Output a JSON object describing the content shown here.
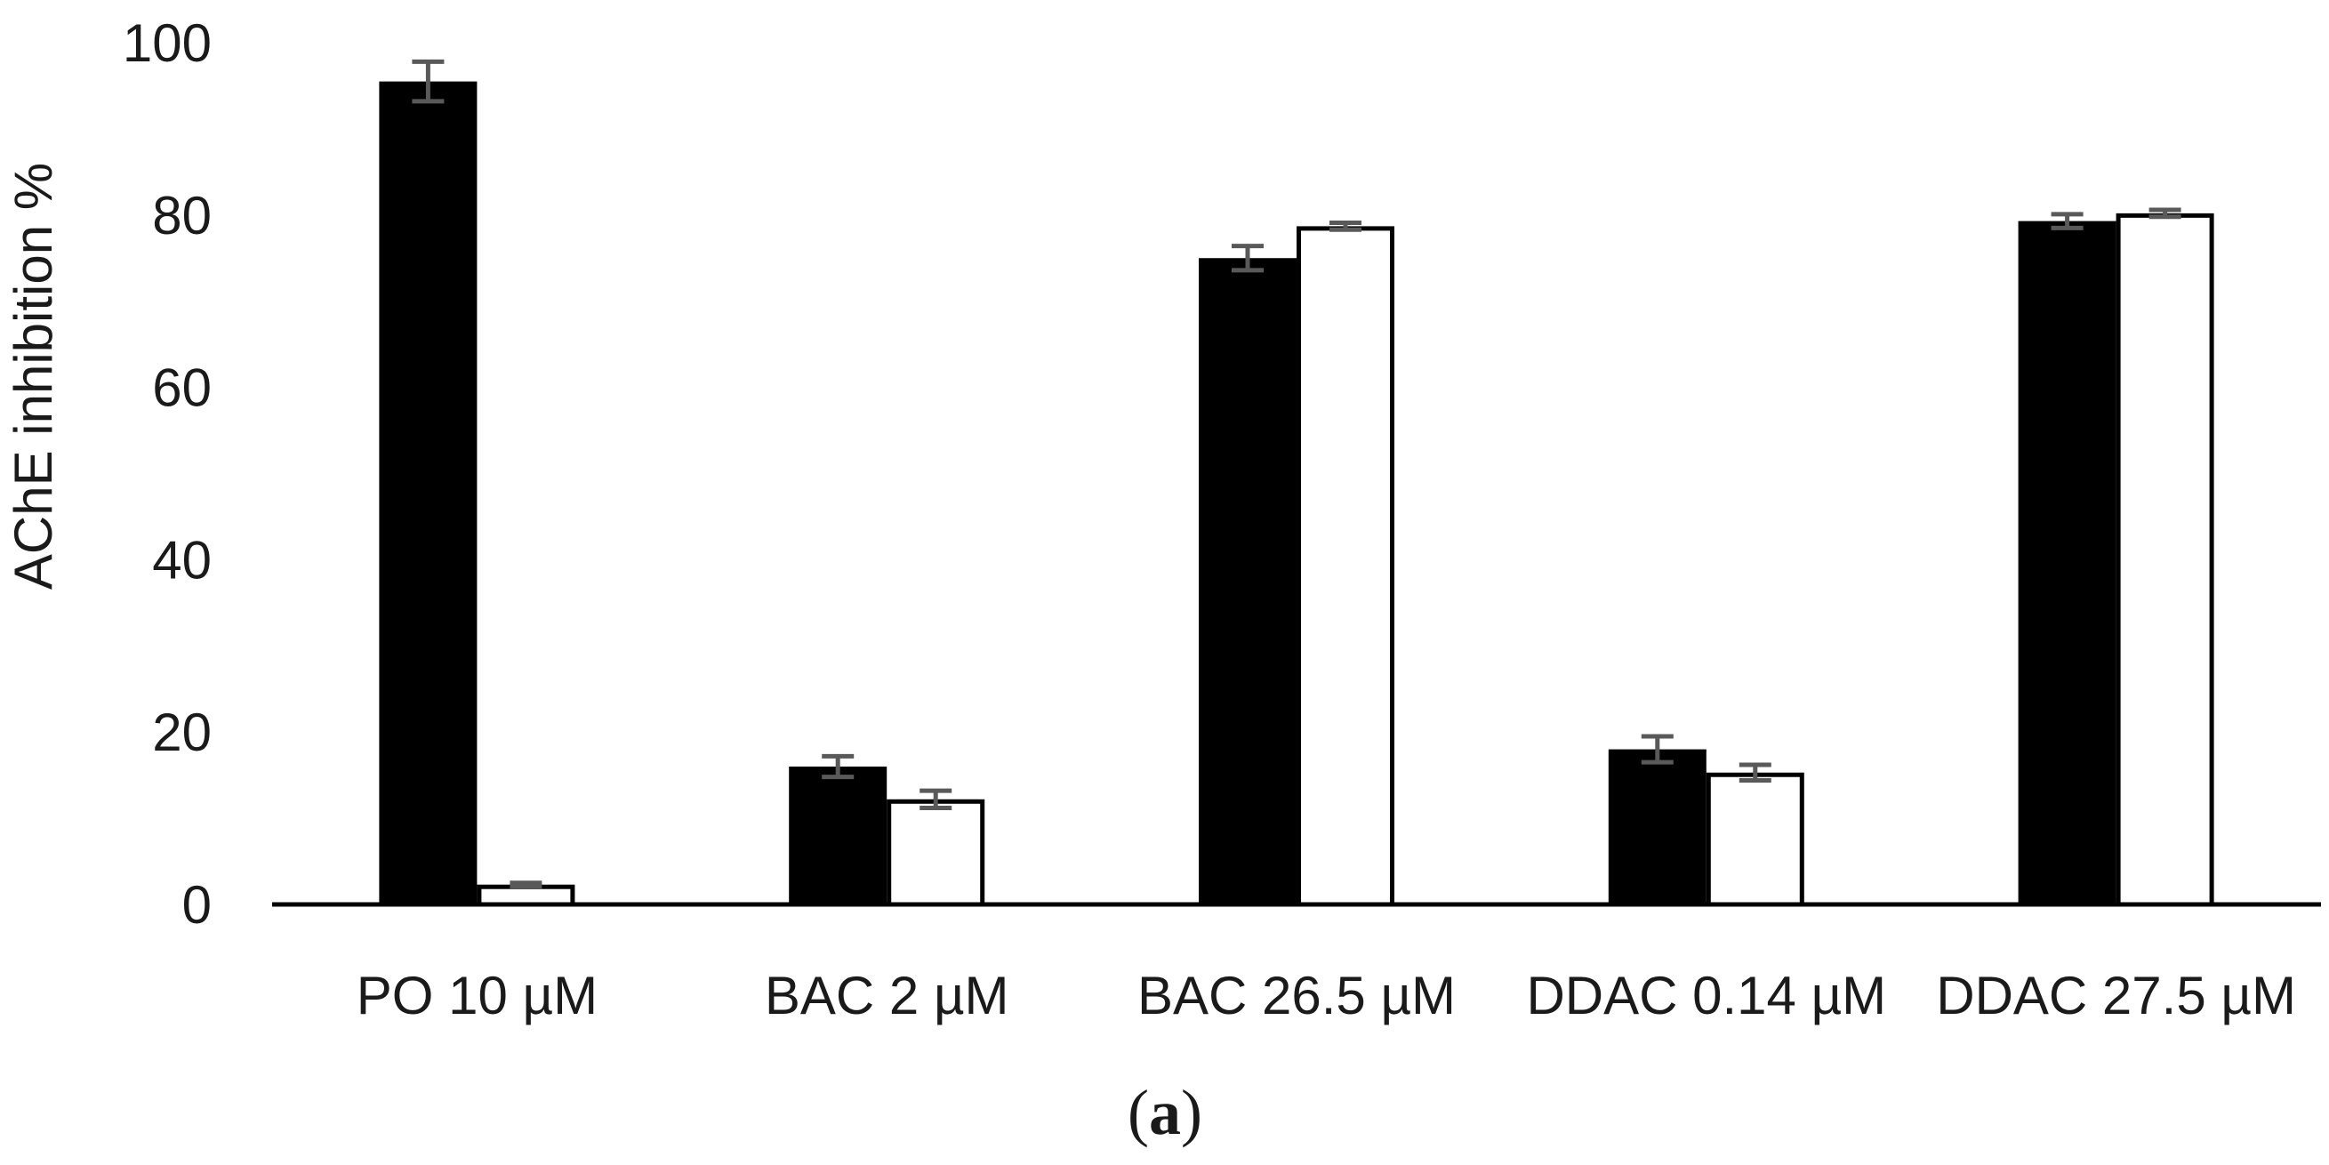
{
  "chart_data": {
    "type": "bar",
    "ylabel": "AChE inhibition %",
    "xlabel": "",
    "ylim": [
      0,
      100
    ],
    "yticks": [
      0,
      20,
      40,
      60,
      80,
      100
    ],
    "grid": false,
    "legend": "none",
    "categories": [
      "PO 10 µM",
      "BAC 2 µM",
      "BAC 26.5 µM",
      "DDAC 0.14 µM",
      "DDAC 27.5 µM"
    ],
    "series": [
      {
        "fill": "#000000",
        "stroke": "#000000",
        "values": [
          95.5,
          16.0,
          75.0,
          18.0,
          79.3
        ],
        "errors": [
          2.3,
          1.2,
          1.4,
          1.5,
          0.8
        ]
      },
      {
        "fill": "#ffffff",
        "stroke": "#000000",
        "values": [
          2.3,
          12.2,
          78.7,
          15.3,
          80.2
        ],
        "errors": [
          0.2,
          1.0,
          0.4,
          0.9,
          0.4
        ]
      }
    ],
    "error_bar_color": "#595959",
    "panel_label": {
      "open": "(",
      "letter": "a",
      "close": ")"
    }
  }
}
